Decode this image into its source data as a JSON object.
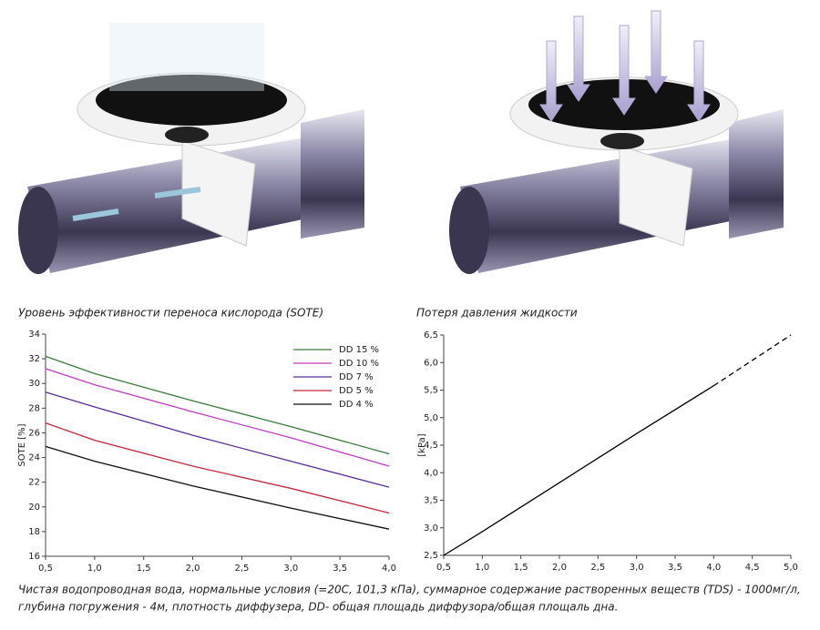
{
  "chart_data": [
    {
      "type": "line",
      "title": "Уровень эффективности переноса кислорода (SOTE)",
      "ylabel": "SOTE [%]",
      "x": [
        0.5,
        1.0,
        2.0,
        3.0,
        4.0
      ],
      "series": [
        {
          "name": "DD 15 %",
          "color": "#3a7d3a",
          "values": [
            32.2,
            30.8,
            28.6,
            26.5,
            24.3
          ]
        },
        {
          "name": "DD 10 %",
          "color": "#c03cc0",
          "values": [
            31.2,
            29.9,
            27.7,
            25.6,
            23.3
          ]
        },
        {
          "name": "DD 7 %",
          "color": "#5b2d9a",
          "values": [
            29.3,
            28.1,
            25.8,
            23.7,
            21.6
          ]
        },
        {
          "name": "DD 5 %",
          "color": "#c8283c",
          "values": [
            26.8,
            25.4,
            23.3,
            21.5,
            19.5
          ]
        },
        {
          "name": "DD 4 %",
          "color": "#111111",
          "values": [
            24.9,
            23.7,
            21.7,
            19.9,
            18.2
          ]
        }
      ],
      "xlim": [
        0.5,
        4.0
      ],
      "xticks": [
        {
          "value": 0.5,
          "label": "0,5"
        },
        {
          "value": 1.0,
          "label": "1,0"
        },
        {
          "value": 1.5,
          "label": "1,5"
        },
        {
          "value": 2.0,
          "label": "2,0"
        },
        {
          "value": 2.5,
          "label": "2,5"
        },
        {
          "value": 3.0,
          "label": "3,0"
        },
        {
          "value": 3.5,
          "label": "3,5"
        },
        {
          "value": 4.0,
          "label": "4,0"
        }
      ],
      "ylim": [
        16,
        34
      ],
      "yticks": [
        16,
        18,
        20,
        22,
        24,
        26,
        28,
        30,
        32,
        34
      ],
      "grid": false,
      "legend": "upper right"
    },
    {
      "type": "line",
      "title": "Потеря давления жидкости",
      "ylabel": "[kPa]",
      "x": [
        0.5,
        1.0,
        2.0,
        3.0,
        4.0,
        5.0
      ],
      "series": [
        {
          "color": "#000000",
          "style": "solid",
          "values": [
            2.5,
            2.93,
            3.82,
            4.71,
            5.58,
            null
          ]
        },
        {
          "color": "#000000",
          "style": "dashed",
          "values": [
            null,
            null,
            null,
            null,
            5.58,
            6.5
          ]
        }
      ],
      "xlim": [
        0.5,
        5.0
      ],
      "xticks": [
        {
          "value": 0.5,
          "label": "0,5"
        },
        {
          "value": 1.0,
          "label": "1,0"
        },
        {
          "value": 1.5,
          "label": "1,5"
        },
        {
          "value": 2.0,
          "label": "2,0"
        },
        {
          "value": 2.5,
          "label": "2,5"
        },
        {
          "value": 3.0,
          "label": "3,0"
        },
        {
          "value": 3.5,
          "label": "3,5"
        },
        {
          "value": 4.0,
          "label": "4,0"
        },
        {
          "value": 4.5,
          "label": "4,5"
        },
        {
          "value": 5.0,
          "label": "5,0"
        }
      ],
      "ylim": [
        2.5,
        6.5
      ],
      "yticks": [
        {
          "value": 2.5,
          "label": "2,5"
        },
        {
          "value": 3.0,
          "label": "3,0"
        },
        {
          "value": 3.5,
          "label": "3,5"
        },
        {
          "value": 4.0,
          "label": "4,0"
        },
        {
          "value": 4.5,
          "label": "4,5"
        },
        {
          "value": 5.0,
          "label": "5,0"
        },
        {
          "value": 5.5,
          "label": "5,5"
        },
        {
          "value": 6.0,
          "label": "6,0"
        },
        {
          "value": 6.5,
          "label": "6,5"
        }
      ],
      "grid": false
    }
  ],
  "footnote": [
    "Чистая водопроводная вода, нормальные условия (=20С, 101,3 кПа), суммарное содержание растворенных веществ (TDS) - 1000мг/л,",
    "глубина погружения - 4м, плотность диффузера, DD- общая площадь диффузора/общая площаль дна."
  ]
}
